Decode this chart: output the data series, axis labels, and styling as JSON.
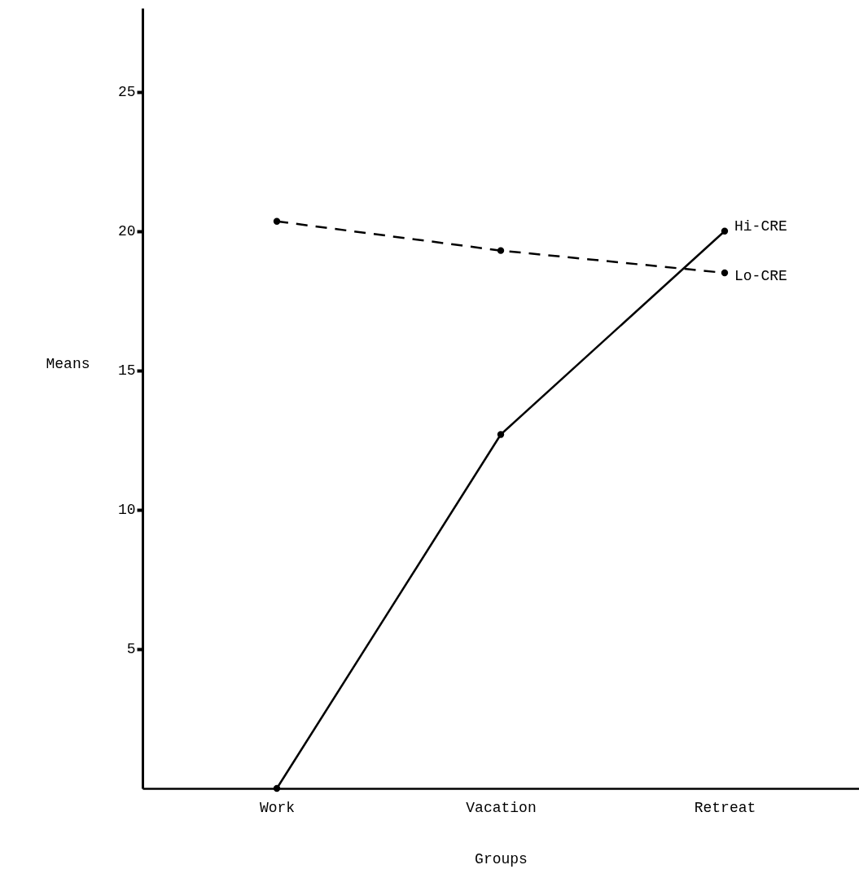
{
  "chart_data": {
    "type": "line",
    "xlabel": "Groups",
    "ylabel": "Means",
    "categories": [
      "Work",
      "Vacation",
      "Retreat"
    ],
    "ylim": [
      0,
      28
    ],
    "yticks": [
      5,
      10,
      15,
      20,
      25
    ],
    "marker": "circle",
    "series": [
      {
        "name": "Hi-CRE",
        "color": "#000000",
        "line_style": "solid",
        "values": [
          0,
          12.7,
          20.0
        ]
      },
      {
        "name": "Lo-CRE",
        "color": "#000000",
        "line_style": "dashed",
        "values": [
          20.35,
          19.3,
          18.5
        ]
      }
    ]
  }
}
